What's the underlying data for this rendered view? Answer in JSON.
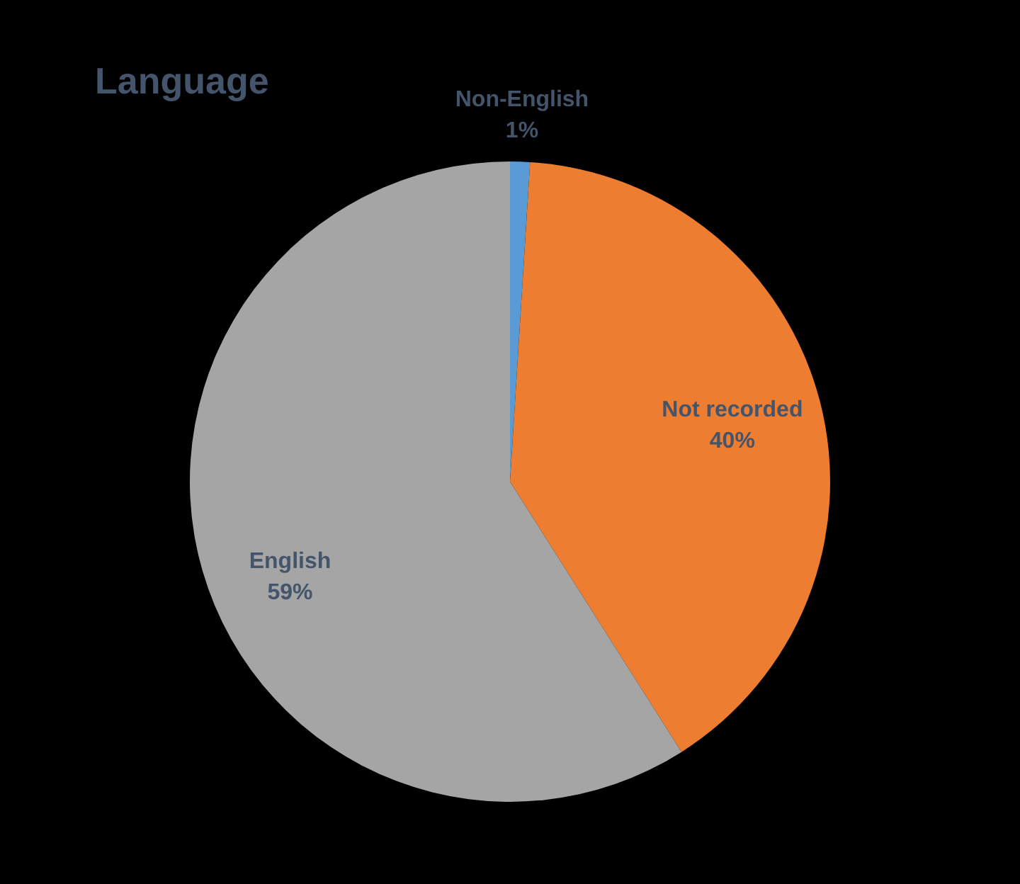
{
  "chart_data": {
    "type": "pie",
    "title": "Language",
    "categories": [
      "Non-English",
      "Not recorded",
      "English"
    ],
    "values": [
      1,
      40,
      59
    ],
    "colors": [
      "#5b9bd5",
      "#ed7d31",
      "#a5a5a5"
    ],
    "value_labels": [
      "1%",
      "40%",
      "59%"
    ],
    "data_labels": true
  }
}
